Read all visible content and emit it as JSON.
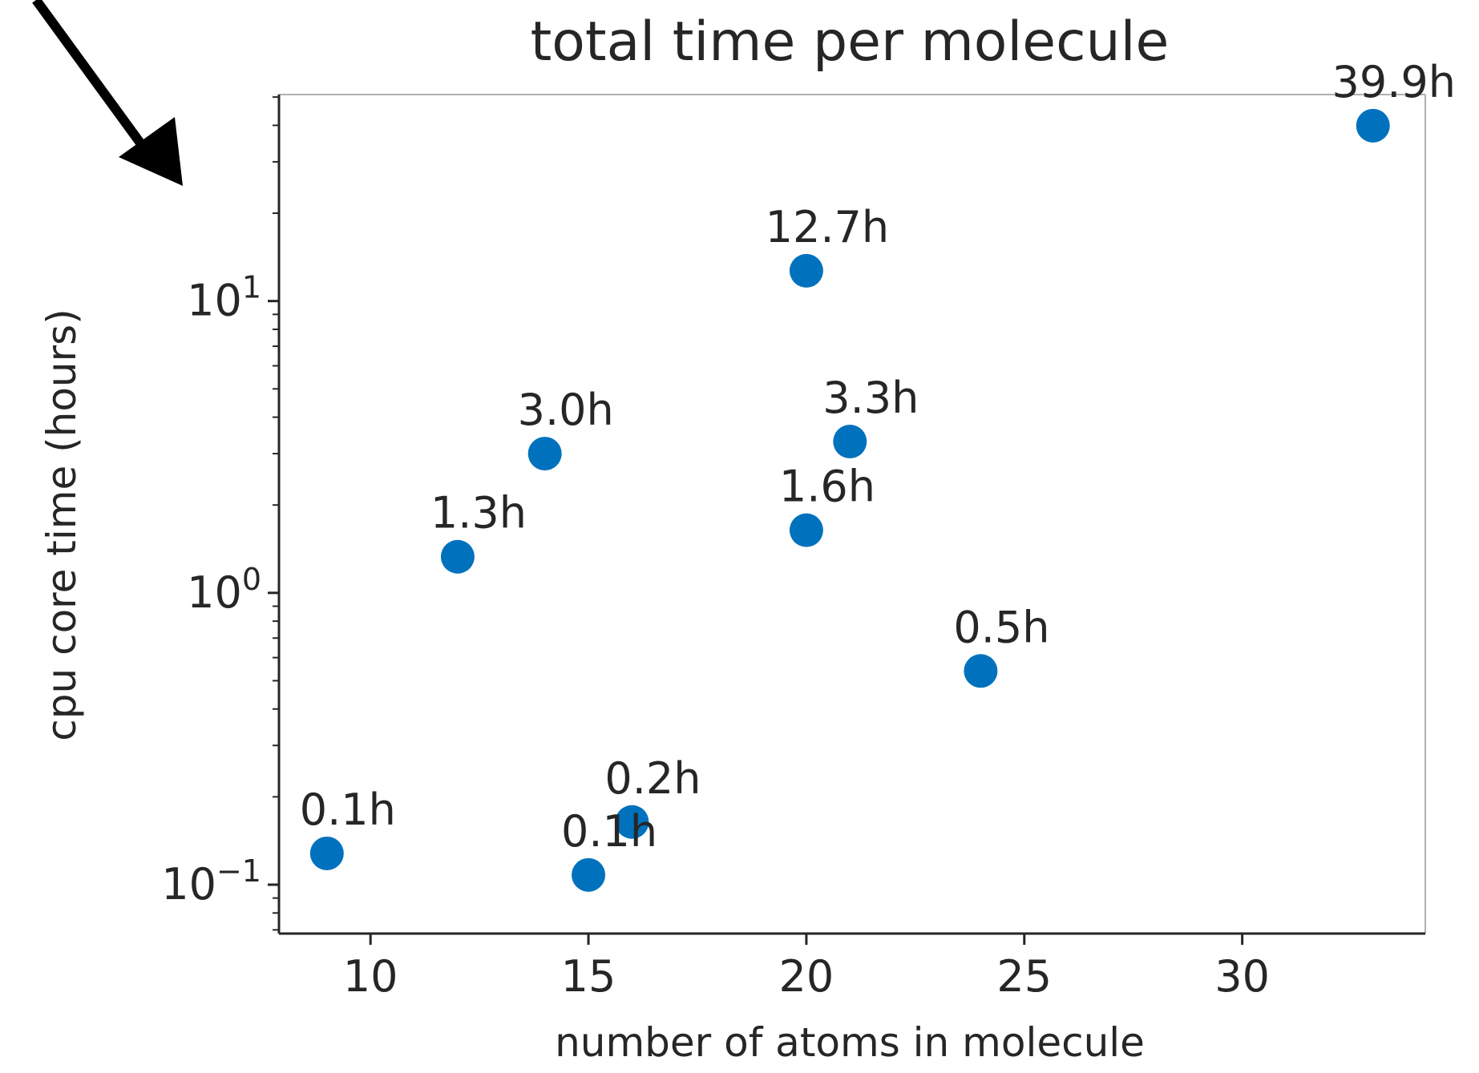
{
  "chart_data": {
    "type": "scatter",
    "title": "total time per molecule",
    "xlabel": "number of atoms in molecule",
    "ylabel": "cpu core time (hours)",
    "x_ticks": [
      "10",
      "15",
      "20",
      "25",
      "30"
    ],
    "x_tick_values": [
      10,
      15,
      20,
      25,
      30
    ],
    "y_scale": "log",
    "y_ticks": [
      {
        "value": 0.1,
        "base": "10",
        "exp": "−1"
      },
      {
        "value": 1,
        "base": "10",
        "exp": "0"
      },
      {
        "value": 10,
        "base": "10",
        "exp": "1"
      }
    ],
    "xlim": [
      7.9,
      34.2
    ],
    "ylim": [
      0.068,
      51
    ],
    "point_color": "#0072bd",
    "points": [
      {
        "x": 9,
        "y": 0.128,
        "label": "0.1h"
      },
      {
        "x": 12,
        "y": 1.33,
        "label": "1.3h"
      },
      {
        "x": 14,
        "y": 3.0,
        "label": "3.0h"
      },
      {
        "x": 15,
        "y": 0.108,
        "label": "0.1h"
      },
      {
        "x": 16,
        "y": 0.164,
        "label": "0.2h"
      },
      {
        "x": 20,
        "y": 12.7,
        "label": "12.7h"
      },
      {
        "x": 20,
        "y": 1.64,
        "label": "1.6h"
      },
      {
        "x": 21,
        "y": 3.3,
        "label": "3.3h"
      },
      {
        "x": 24,
        "y": 0.54,
        "label": "0.5h"
      },
      {
        "x": 33,
        "y": 39.9,
        "label": "39.9h"
      }
    ]
  }
}
